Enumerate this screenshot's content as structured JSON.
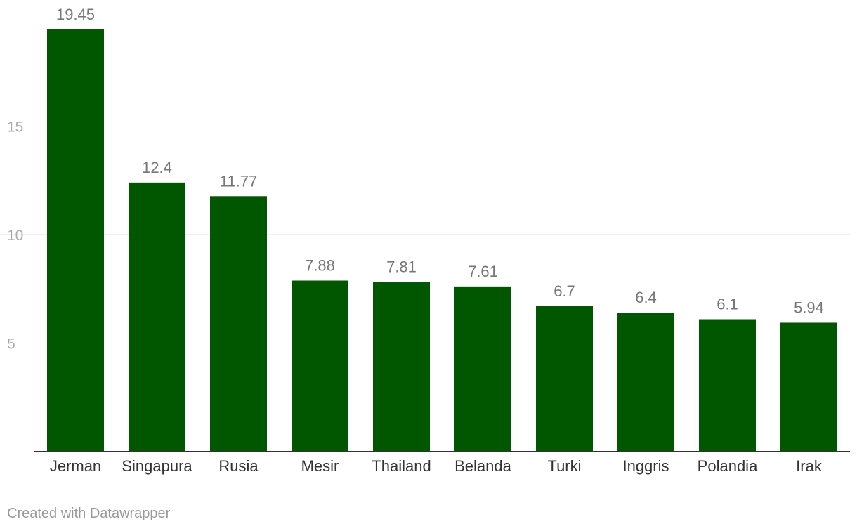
{
  "chart_data": {
    "type": "bar",
    "categories": [
      "Jerman",
      "Singapura",
      "Rusia",
      "Mesir",
      "Thailand",
      "Belanda",
      "Turki",
      "Inggris",
      "Polandia",
      "Irak"
    ],
    "values": [
      19.45,
      12.4,
      11.77,
      7.88,
      7.81,
      7.61,
      6.7,
      6.4,
      6.1,
      5.94
    ],
    "value_labels": [
      "19.45",
      "12.4",
      "11.77",
      "7.88",
      "7.81",
      "7.61",
      "6.7",
      "6.4",
      "6.1",
      "5.94"
    ],
    "y_ticks": [
      5,
      10,
      15
    ],
    "ylim": [
      0,
      19.45
    ],
    "grid": true,
    "bar_color": "#005700",
    "title": "",
    "xlabel": "",
    "ylabel": ""
  },
  "footer": {
    "credit": "Created with Datawrapper"
  }
}
